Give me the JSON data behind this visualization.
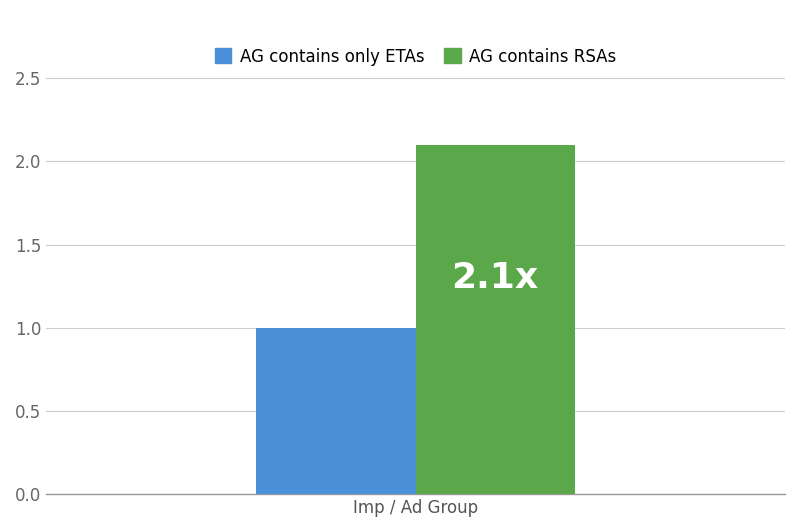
{
  "bar1_label": "AG contains only ETAs",
  "bar2_label": "AG contains RSAs",
  "bar1_value": 1.0,
  "bar2_value": 2.1,
  "bar1_color": "#4A90D9",
  "bar2_color": "#5BA84B",
  "annotation_text": "2.1x",
  "annotation_color": "#ffffff",
  "annotation_fontsize": 26,
  "xlabel": "Imp / Ad Group",
  "ylim": [
    0,
    2.5
  ],
  "yticks": [
    0.0,
    0.5,
    1.0,
    1.5,
    2.0,
    2.5
  ],
  "grid_color": "#cccccc",
  "background_color": "#ffffff",
  "bar_width": 0.28,
  "legend_fontsize": 12,
  "xlabel_fontsize": 12,
  "ytick_fontsize": 12,
  "legend_marker_size": 14
}
